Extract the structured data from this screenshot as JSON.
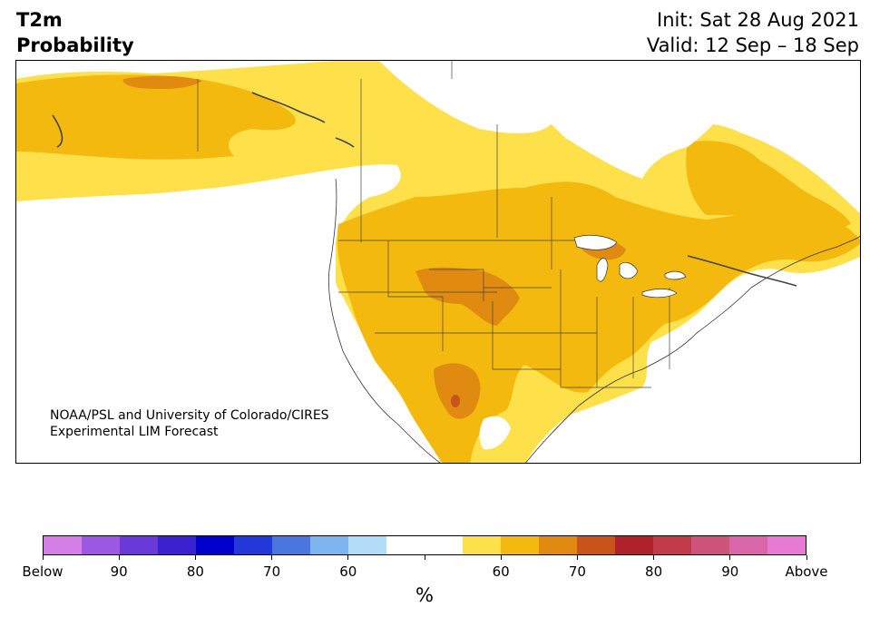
{
  "header": {
    "title_line1": "T2m",
    "title_line2": "Probability",
    "init": "Init: Sat 28 Aug 2021",
    "valid": "Valid: 12 Sep – 18 Sep"
  },
  "credit": {
    "line1": "NOAA/PSL and University of Colorado/CIRES",
    "line2": "Experimental LIM Forecast"
  },
  "colorbar": {
    "unit": "%",
    "colors": [
      "#d67ee8",
      "#9c58e0",
      "#6a3ad8",
      "#3a22d0",
      "#0000cc",
      "#2238d8",
      "#4a76e0",
      "#7eb4f0",
      "#b2dcf8",
      "#ffffff",
      "#ffffff",
      "#fee04a",
      "#f3b90e",
      "#e08a12",
      "#c8541a",
      "#b0222a",
      "#c03a4a",
      "#cc5478",
      "#d866a8",
      "#e87ad6"
    ],
    "tick_labels": [
      "Below",
      "90",
      "80",
      "70",
      "60",
      "",
      "60",
      "70",
      "80",
      "90",
      "Above"
    ]
  },
  "map": {
    "legend_colors": {
      "above_55_60": "#fee04a",
      "above_60_70": "#f3b90e",
      "above_70_80": "#e08a12",
      "above_80_90": "#c8541a"
    }
  }
}
